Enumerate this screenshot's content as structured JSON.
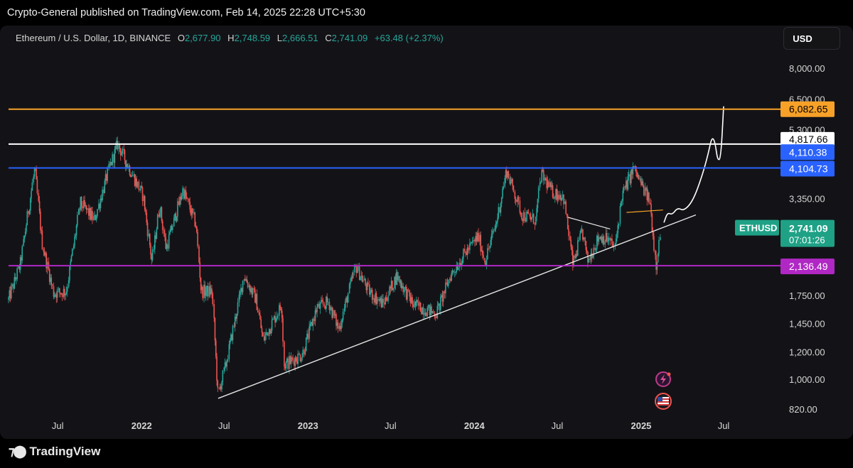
{
  "publisher_line": "Crypto-General published on TradingView.com, Feb 14, 2025 22:28 UTC+5:30",
  "brand": "TradingView",
  "currency_button": "USD",
  "colors": {
    "background": "#131317",
    "up": "#26a69a",
    "down": "#ef5350",
    "orange": "#f7a128",
    "white": "#ffffff",
    "blue": "#2962ff",
    "purple": "#b028c4",
    "ethusd": "#1fa186"
  },
  "icons": [
    "tradingview-logo",
    "flash-event-icon",
    "us-flag-event-icon"
  ],
  "chart_data": {
    "type": "candlestick",
    "symbol": "Ethereum / U.S. Dollar, 1D, BINANCE",
    "ohlc_label": {
      "O": "2,677.90",
      "H": "2,748.59",
      "L": "2,666.51",
      "C": "2,741.09",
      "change": "+63.48 (+2.37%)"
    },
    "y_scale": "log",
    "y_ticks": [
      "8,000.00",
      "6,500.00",
      "5,300.00",
      "3,350.00",
      "1,750.00",
      "1,450.00",
      "1,200.00",
      "1,000.00",
      "820.00"
    ],
    "x_ticks": [
      "Jul",
      "2022",
      "Jul",
      "2023",
      "Jul",
      "2024",
      "Jul",
      "2025",
      "Jul"
    ],
    "horizontal_levels": [
      {
        "label": "6,082.65",
        "value": 6082.65,
        "color": "#f7a128"
      },
      {
        "label": "4,817.66",
        "value": 4817.66,
        "color": "#ffffff"
      },
      {
        "label": "4,104.73",
        "value": 4104.73,
        "color": "#2962ff"
      },
      {
        "label": "2,136.49",
        "value": 2136.49,
        "color": "#b028c4"
      }
    ],
    "extra_price_label": {
      "label": "4,110.38",
      "value": 4110.38
    },
    "current_price": {
      "symbol": "ETHUSD",
      "price": "2,741.09",
      "countdown": "07:01:26"
    },
    "price_path": [
      {
        "date": "2021-03-15",
        "price": 1700
      },
      {
        "date": "2021-04-10",
        "price": 2150
      },
      {
        "date": "2021-05-12",
        "price": 4100
      },
      {
        "date": "2021-05-28",
        "price": 2500
      },
      {
        "date": "2021-06-22",
        "price": 1780
      },
      {
        "date": "2021-07-20",
        "price": 1800
      },
      {
        "date": "2021-08-20",
        "price": 3250
      },
      {
        "date": "2021-09-20",
        "price": 2900
      },
      {
        "date": "2021-10-20",
        "price": 4000
      },
      {
        "date": "2021-11-10",
        "price": 4820
      },
      {
        "date": "2021-12-05",
        "price": 4100
      },
      {
        "date": "2022-01-05",
        "price": 3400
      },
      {
        "date": "2022-01-24",
        "price": 2200
      },
      {
        "date": "2022-02-10",
        "price": 3200
      },
      {
        "date": "2022-02-24",
        "price": 2400
      },
      {
        "date": "2022-04-02",
        "price": 3550
      },
      {
        "date": "2022-05-01",
        "price": 2800
      },
      {
        "date": "2022-05-12",
        "price": 1800
      },
      {
        "date": "2022-06-05",
        "price": 1800
      },
      {
        "date": "2022-06-18",
        "price": 900
      },
      {
        "date": "2022-07-05",
        "price": 1100
      },
      {
        "date": "2022-08-14",
        "price": 2000
      },
      {
        "date": "2022-09-10",
        "price": 1700
      },
      {
        "date": "2022-09-25",
        "price": 1300
      },
      {
        "date": "2022-11-05",
        "price": 1650
      },
      {
        "date": "2022-11-10",
        "price": 1100
      },
      {
        "date": "2022-12-20",
        "price": 1180
      },
      {
        "date": "2023-01-20",
        "price": 1600
      },
      {
        "date": "2023-02-15",
        "price": 1680
      },
      {
        "date": "2023-03-10",
        "price": 1400
      },
      {
        "date": "2023-04-16",
        "price": 2130
      },
      {
        "date": "2023-05-15",
        "price": 1800
      },
      {
        "date": "2023-06-15",
        "price": 1650
      },
      {
        "date": "2023-07-15",
        "price": 2000
      },
      {
        "date": "2023-08-20",
        "price": 1650
      },
      {
        "date": "2023-10-10",
        "price": 1550
      },
      {
        "date": "2023-11-10",
        "price": 2000
      },
      {
        "date": "2023-12-10",
        "price": 2300
      },
      {
        "date": "2024-01-10",
        "price": 2600
      },
      {
        "date": "2024-01-25",
        "price": 2200
      },
      {
        "date": "2024-02-20",
        "price": 2900
      },
      {
        "date": "2024-03-12",
        "price": 4050
      },
      {
        "date": "2024-04-15",
        "price": 3000
      },
      {
        "date": "2024-05-15",
        "price": 2900
      },
      {
        "date": "2024-05-27",
        "price": 3950
      },
      {
        "date": "2024-06-20",
        "price": 3500
      },
      {
        "date": "2024-07-15",
        "price": 3400
      },
      {
        "date": "2024-08-05",
        "price": 2150
      },
      {
        "date": "2024-08-25",
        "price": 2700
      },
      {
        "date": "2024-09-06",
        "price": 2200
      },
      {
        "date": "2024-10-01",
        "price": 2600
      },
      {
        "date": "2024-10-20",
        "price": 2550
      },
      {
        "date": "2024-11-05",
        "price": 2400
      },
      {
        "date": "2024-11-20",
        "price": 3400
      },
      {
        "date": "2024-12-16",
        "price": 4100
      },
      {
        "date": "2025-01-05",
        "price": 3600
      },
      {
        "date": "2025-01-20",
        "price": 3300
      },
      {
        "date": "2025-02-03",
        "price": 2150
      },
      {
        "date": "2025-02-14",
        "price": 2741
      }
    ],
    "drawings": {
      "rising_trendline": [
        {
          "date": "2022-06-18",
          "price": 880
        },
        {
          "date": "2025-05-01",
          "price": 3000
        }
      ],
      "descending_pennant_line": [
        {
          "date": "2024-07-25",
          "price": 2950
        },
        {
          "date": "2024-10-25",
          "price": 2730
        }
      ],
      "orange_short_line": [
        {
          "date": "2024-11-30",
          "price": 3050
        },
        {
          "date": "2025-02-18",
          "price": 3100
        }
      ],
      "forecast_path": [
        {
          "date": "2025-02-20",
          "price": 2850
        },
        {
          "date": "2025-02-28",
          "price": 3050
        },
        {
          "date": "2025-03-10",
          "price": 3000
        },
        {
          "date": "2025-03-22",
          "price": 3150
        },
        {
          "date": "2025-04-05",
          "price": 3080
        },
        {
          "date": "2025-04-25",
          "price": 3300
        },
        {
          "date": "2025-05-15",
          "price": 3900
        },
        {
          "date": "2025-05-28",
          "price": 4500
        },
        {
          "date": "2025-06-05",
          "price": 5050
        },
        {
          "date": "2025-06-12",
          "price": 4900
        },
        {
          "date": "2025-06-18",
          "price": 4300
        },
        {
          "date": "2025-06-25",
          "price": 4400
        },
        {
          "date": "2025-07-01",
          "price": 6200
        }
      ]
    }
  }
}
